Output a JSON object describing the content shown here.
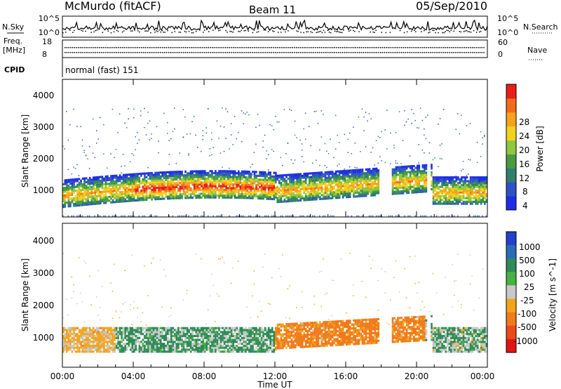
{
  "header": {
    "site": "McMurdo (fitACF)",
    "beam": "Beam 11",
    "date": "05/Sep/2010"
  },
  "summary_panels": {
    "noise_left_label": "N.Sky",
    "noise_right_label": "N.Search",
    "noise_ticks": [
      "10^5",
      "10^0"
    ],
    "freq_label": "Freq.",
    "freq_units": "[MHz]",
    "freq_ticks": [
      "18",
      "8"
    ],
    "nave_label": "Nave",
    "nave_ticks": [
      "60",
      "0"
    ],
    "cpid_label": "CPID",
    "cpid_value": "normal (fast) 151"
  },
  "colors": {
    "power_scale": [
      "#1f2ee6",
      "#2c52c8",
      "#2f7f6a",
      "#4a9a44",
      "#8dc83d",
      "#f0d21f",
      "#f7a21d",
      "#f26b1c",
      "#e81f16"
    ],
    "velocity_scale": [
      "#2240c8",
      "#2d6ab6",
      "#2e8a58",
      "#47b042",
      "#c8c8c8",
      "#f3a41b",
      "#f07a1c",
      "#ea4b18",
      "#e01614"
    ]
  },
  "chart_data": [
    {
      "type": "heatmap",
      "panel": "power",
      "ylabel": "Slant Range [km]",
      "yticks": [
        "1000",
        "2000",
        "3000",
        "4000"
      ],
      "ylim": [
        200,
        4600
      ],
      "xlim": [
        0,
        24
      ],
      "xticks": [
        "00:00",
        "04:00",
        "08:00",
        "12:00",
        "16:00",
        "20:00",
        "00:00"
      ],
      "colorbar_label": "Power [dB]",
      "colorbar_ticks": [
        "4",
        "8",
        "12",
        "16",
        "20",
        "24",
        "28"
      ],
      "colorbar_range": [
        0,
        32
      ]
    },
    {
      "type": "heatmap",
      "panel": "velocity",
      "ylabel": "Slant Range [km]",
      "yticks": [
        "1000",
        "2000",
        "3000",
        "4000"
      ],
      "ylim": [
        200,
        4600
      ],
      "xlim": [
        0,
        24
      ],
      "xticks": [
        "00:00",
        "04:00",
        "08:00",
        "12:00",
        "16:00",
        "20:00",
        "00:00"
      ],
      "xlabel": "Time UT",
      "colorbar_label": "Velocity [m s^-1]",
      "colorbar_ticks": [
        "1000",
        "500",
        "100",
        "25",
        "-25",
        "-100",
        "-500",
        "-1000"
      ]
    }
  ]
}
